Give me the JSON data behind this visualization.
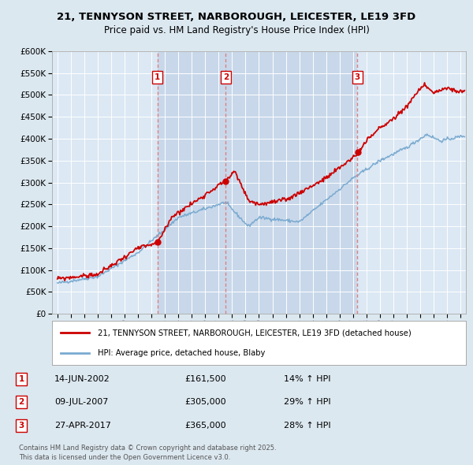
{
  "title_line1": "21, TENNYSON STREET, NARBOROUGH, LEICESTER, LE19 3FD",
  "title_line2": "Price paid vs. HM Land Registry's House Price Index (HPI)",
  "ytick_values": [
    0,
    50000,
    100000,
    150000,
    200000,
    250000,
    300000,
    350000,
    400000,
    450000,
    500000,
    550000,
    600000
  ],
  "xlim_start": 1994.6,
  "xlim_end": 2025.4,
  "ylim_min": 0,
  "ylim_max": 600000,
  "sale_color": "#cc0000",
  "hpi_color": "#7aaad0",
  "background_color": "#dce8f0",
  "plot_bg_color": "#dce8f4",
  "shaded_bg_color": "#c8d8ea",
  "grid_color": "#c8c8c8",
  "transactions": [
    {
      "num": 1,
      "date": "14-JUN-2002",
      "price": 161500,
      "pct": "14%",
      "dir": "↑",
      "year": 2002.45
    },
    {
      "num": 2,
      "date": "09-JUL-2007",
      "price": 305000,
      "pct": "29%",
      "dir": "↑",
      "year": 2007.53
    },
    {
      "num": 3,
      "date": "27-APR-2017",
      "price": 365000,
      "pct": "28%",
      "dir": "↑",
      "year": 2017.32
    }
  ],
  "footer_text": "Contains HM Land Registry data © Crown copyright and database right 2025.\nThis data is licensed under the Open Government Licence v3.0.",
  "legend_label_sale": "21, TENNYSON STREET, NARBOROUGH, LEICESTER, LE19 3FD (detached house)",
  "legend_label_hpi": "HPI: Average price, detached house, Blaby",
  "dashed_color": "#e08080"
}
